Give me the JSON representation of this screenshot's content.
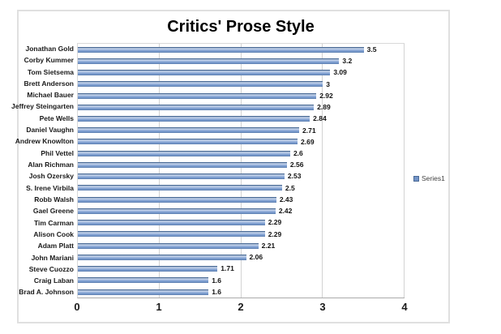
{
  "chart_data": {
    "type": "bar",
    "orientation": "horizontal",
    "title": "Critics' Prose Style",
    "series_name": "Series1",
    "categories": [
      "Jonathan Gold",
      "Corby Kummer",
      "Tom Sietsema",
      "Brett Anderson",
      "Michael Bauer",
      "Jeffrey Steingarten",
      "Pete Wells",
      "Daniel Vaughn",
      "Andrew Knowlton",
      "Phil Vettel",
      "Alan Richman",
      "Josh Ozersky",
      "S. Irene Virbila",
      "Robb Walsh",
      "Gael Greene",
      "Tim Carman",
      "Alison Cook",
      "Adam Platt",
      "John Mariani",
      "Steve Cuozzo",
      "Craig Laban",
      "Brad A. Johnson"
    ],
    "values": [
      3.5,
      3.2,
      3.09,
      3,
      2.92,
      2.89,
      2.84,
      2.71,
      2.69,
      2.6,
      2.56,
      2.53,
      2.5,
      2.43,
      2.42,
      2.29,
      2.29,
      2.21,
      2.06,
      1.71,
      1.6,
      1.6
    ],
    "value_labels": [
      "3.5",
      "3.2",
      "3.09",
      "3",
      "2.92",
      "2.89",
      "2.84",
      "2.71",
      "2.69",
      "2.6",
      "2.56",
      "2.53",
      "2.5",
      "2.43",
      "2.42",
      "2.29",
      "2.29",
      "2.21",
      "2.06",
      "1.71",
      "1.6",
      "1.6"
    ],
    "xlabel": "",
    "ylabel": "",
    "xlim": [
      0,
      4
    ],
    "x_ticks": [
      "0",
      "1",
      "2",
      "3",
      "4"
    ],
    "grid": true,
    "legend_position": "right",
    "colors": {
      "bar": "#7093c7",
      "bar_edge": "#44658f",
      "gridline": "#d3d3d3",
      "axis_line": "#ababab",
      "frame_border": "#e0e0e0",
      "title_text": "#000000",
      "label_text": "#1a1a1a",
      "legend_text": "#3f3f3f"
    }
  }
}
